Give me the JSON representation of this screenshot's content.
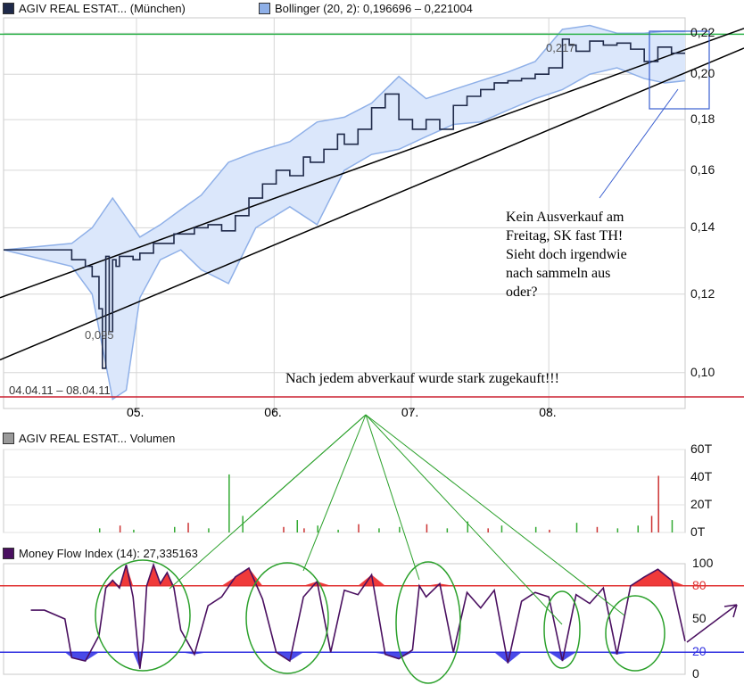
{
  "header": {
    "price_label": "AGIV REAL ESTAT... (München)",
    "bollinger_label": "Bollinger (20, 2): 0,196696 – 0,221004",
    "volume_label": "AGIV REAL ESTAT... Volumen",
    "mfi_label": "Money Flow Index (14): 27,335163",
    "price_color": "#1f2a4a",
    "bollinger_color": "#8fb0e8",
    "volume_color": "#9a9a9a",
    "mfi_color": "#4a1060"
  },
  "annotations": {
    "date_range": "04.04.11 – 08.04.11",
    "high_label": "0,217",
    "low_label": "0,095",
    "comment_lines": [
      "Kein Ausverkauf am",
      "Freitag, SK fast TH!",
      "Sieht doch irgendwie",
      "nach sammeln aus",
      "oder?"
    ],
    "note": "Nach jedem abverkauf wurde stark zugekauft!!!"
  },
  "chart_data": [
    {
      "type": "line",
      "title": "AGIV REAL ESTAT... (München)",
      "scale": "log",
      "ylim": [
        0.092,
        0.228
      ],
      "x_ticks": [
        "05.",
        "06.",
        "07.",
        "08."
      ],
      "y_ticks": [
        {
          "value": 0.22,
          "label": "0,22"
        },
        {
          "value": 0.2,
          "label": "0,20"
        },
        {
          "value": 0.18,
          "label": "0,18"
        },
        {
          "value": 0.16,
          "label": "0,16"
        },
        {
          "value": 0.14,
          "label": "0,14"
        },
        {
          "value": 0.12,
          "label": "0,12"
        },
        {
          "value": 0.1,
          "label": "0,10"
        }
      ],
      "horizontal_lines": [
        {
          "value": 0.2195,
          "color": "#2db34a"
        },
        {
          "value": 0.0945,
          "color": "#cc2030"
        }
      ],
      "trend_lines": [
        {
          "from": [
            0.0,
            0.119
          ],
          "to": [
            1.0,
            0.2225
          ]
        },
        {
          "from": [
            0.0,
            0.103
          ],
          "to": [
            1.0,
            0.2125
          ]
        }
      ],
      "series": [
        {
          "name": "AGIV REAL ESTAT... (München)",
          "x": [
            0.0,
            0.04,
            0.08,
            0.1,
            0.12,
            0.13,
            0.14,
            0.145,
            0.15,
            0.155,
            0.16,
            0.165,
            0.17,
            0.18,
            0.19,
            0.2,
            0.22,
            0.25,
            0.28,
            0.3,
            0.32,
            0.34,
            0.36,
            0.38,
            0.4,
            0.42,
            0.44,
            0.45,
            0.47,
            0.49,
            0.5,
            0.52,
            0.54,
            0.56,
            0.58,
            0.6,
            0.62,
            0.64,
            0.66,
            0.68,
            0.7,
            0.72,
            0.74,
            0.76,
            0.78,
            0.8,
            0.82,
            0.83,
            0.84,
            0.86,
            0.88,
            0.9,
            0.92,
            0.94,
            0.96,
            0.98,
            1.0
          ],
          "values": [
            0.133,
            0.133,
            0.133,
            0.13,
            0.128,
            0.125,
            0.116,
            0.101,
            0.131,
            0.11,
            0.13,
            0.128,
            0.131,
            0.131,
            0.13,
            0.132,
            0.135,
            0.138,
            0.14,
            0.141,
            0.139,
            0.144,
            0.15,
            0.155,
            0.16,
            0.158,
            0.165,
            0.163,
            0.168,
            0.174,
            0.17,
            0.176,
            0.185,
            0.191,
            0.18,
            0.176,
            0.18,
            0.176,
            0.186,
            0.19,
            0.193,
            0.196,
            0.197,
            0.198,
            0.2,
            0.203,
            0.217,
            0.214,
            0.211,
            0.216,
            0.214,
            0.215,
            0.212,
            0.206,
            0.213,
            0.21,
            0.21
          ]
        },
        {
          "name": "Bollinger Upper",
          "x": [
            0.0,
            0.1,
            0.13,
            0.16,
            0.2,
            0.23,
            0.26,
            0.29,
            0.33,
            0.37,
            0.42,
            0.46,
            0.5,
            0.54,
            0.58,
            0.62,
            0.66,
            0.7,
            0.74,
            0.78,
            0.82,
            0.86,
            0.9,
            0.94,
            0.97,
            1.0
          ],
          "values": [
            0.133,
            0.135,
            0.14,
            0.15,
            0.137,
            0.141,
            0.146,
            0.151,
            0.163,
            0.167,
            0.171,
            0.179,
            0.181,
            0.187,
            0.199,
            0.189,
            0.193,
            0.197,
            0.201,
            0.206,
            0.222,
            0.224,
            0.22,
            0.22,
            0.221,
            0.221
          ]
        },
        {
          "name": "Bollinger Lower",
          "x": [
            0.0,
            0.1,
            0.13,
            0.16,
            0.18,
            0.2,
            0.23,
            0.26,
            0.29,
            0.33,
            0.37,
            0.42,
            0.46,
            0.5,
            0.54,
            0.58,
            0.62,
            0.66,
            0.7,
            0.74,
            0.78,
            0.82,
            0.86,
            0.9,
            0.94,
            0.97,
            1.0
          ],
          "values": [
            0.133,
            0.128,
            0.12,
            0.094,
            0.096,
            0.119,
            0.13,
            0.133,
            0.127,
            0.123,
            0.14,
            0.147,
            0.141,
            0.16,
            0.166,
            0.168,
            0.173,
            0.178,
            0.179,
            0.184,
            0.189,
            0.193,
            0.2,
            0.203,
            0.198,
            0.196,
            0.197
          ]
        }
      ]
    },
    {
      "type": "bar",
      "title": "AGIV REAL ESTAT... Volumen",
      "ylim": [
        0,
        60
      ],
      "y_ticks": [
        {
          "value": 60,
          "label": "60T"
        },
        {
          "value": 40,
          "label": "40T"
        },
        {
          "value": 20,
          "label": "20T"
        },
        {
          "value": 0,
          "label": "0T"
        }
      ],
      "x": [
        0.14,
        0.17,
        0.19,
        0.25,
        0.27,
        0.3,
        0.33,
        0.35,
        0.41,
        0.43,
        0.44,
        0.46,
        0.49,
        0.52,
        0.55,
        0.58,
        0.62,
        0.65,
        0.68,
        0.71,
        0.73,
        0.78,
        0.8,
        0.84,
        0.87,
        0.9,
        0.93,
        0.95,
        0.96,
        0.98
      ],
      "values": [
        3,
        5,
        2,
        4,
        7,
        3,
        42,
        12,
        4,
        9,
        3,
        5,
        2,
        6,
        3,
        4,
        6,
        3,
        8,
        3,
        5,
        4,
        2,
        7,
        4,
        3,
        5,
        12,
        41,
        9
      ],
      "colors": [
        "#3a3",
        "#c33",
        "#3a3",
        "#3a3",
        "#c33",
        "#3a3",
        "#3a3",
        "#3a3",
        "#c33",
        "#3a3",
        "#c33",
        "#3a3",
        "#3a3",
        "#c33",
        "#3a3",
        "#3a3",
        "#c33",
        "#3a3",
        "#3a3",
        "#c33",
        "#3a3",
        "#3a3",
        "#c33",
        "#3a3",
        "#c33",
        "#3a3",
        "#3a3",
        "#c33",
        "#c33",
        "#3a3"
      ]
    },
    {
      "type": "line",
      "title": "Money Flow Index (14)",
      "ylim": [
        0,
        100
      ],
      "y_ticks": [
        {
          "value": 100,
          "label": "100"
        },
        {
          "value": 80,
          "label": "80"
        },
        {
          "value": 50,
          "label": "50"
        },
        {
          "value": 20,
          "label": "20"
        },
        {
          "value": 0,
          "label": "0"
        }
      ],
      "levels": [
        {
          "value": 80,
          "color": "#e03030"
        },
        {
          "value": 20,
          "color": "#3030e0"
        }
      ],
      "series": [
        {
          "name": "Money Flow Index (14)",
          "x": [
            0.04,
            0.06,
            0.09,
            0.1,
            0.12,
            0.14,
            0.15,
            0.16,
            0.17,
            0.18,
            0.19,
            0.2,
            0.205,
            0.21,
            0.22,
            0.23,
            0.24,
            0.25,
            0.26,
            0.28,
            0.3,
            0.32,
            0.34,
            0.36,
            0.38,
            0.4,
            0.42,
            0.44,
            0.46,
            0.48,
            0.5,
            0.52,
            0.54,
            0.56,
            0.58,
            0.6,
            0.61,
            0.62,
            0.64,
            0.66,
            0.68,
            0.7,
            0.72,
            0.74,
            0.76,
            0.78,
            0.8,
            0.82,
            0.84,
            0.86,
            0.88,
            0.9,
            0.92,
            0.94,
            0.96,
            0.98,
            1.0
          ],
          "values": [
            58,
            58,
            50,
            15,
            12,
            35,
            78,
            85,
            78,
            99,
            70,
            5,
            30,
            80,
            99,
            82,
            92,
            78,
            40,
            18,
            62,
            70,
            88,
            96,
            68,
            20,
            12,
            70,
            84,
            20,
            76,
            72,
            90,
            18,
            14,
            22,
            80,
            70,
            82,
            20,
            74,
            60,
            76,
            10,
            66,
            74,
            70,
            12,
            72,
            64,
            78,
            18,
            80,
            88,
            95,
            85,
            30
          ]
        }
      ]
    }
  ]
}
